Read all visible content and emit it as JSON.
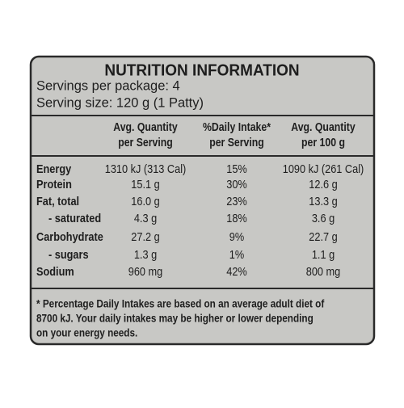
{
  "header": {
    "title": "NUTRITION INFORMATION",
    "servings_per_package": "Servings per package: 4",
    "serving_size": "Serving size: 120 g (1 Patty)"
  },
  "table": {
    "columns": [
      [
        "Avg. Quantity",
        "per Serving"
      ],
      [
        "%Daily Intake*",
        "per Serving"
      ],
      [
        "Avg. Quantity",
        "per 100 g"
      ]
    ],
    "rows": [
      [
        "Energy",
        "1310 kJ (313 Cal)",
        "15%",
        "1090 kJ (261 Cal)"
      ],
      [
        "Protein",
        "15.1 g",
        "30%",
        "12.6 g"
      ],
      [
        "Fat, total",
        "16.0 g",
        "23%",
        "13.3 g"
      ],
      [
        "- saturated",
        "4.3 g",
        "18%",
        "3.6 g"
      ],
      [
        "Carbohydrate",
        "27.2 g",
        "9%",
        "22.7 g"
      ],
      [
        "- sugars",
        "1.3 g",
        "1%",
        "1.1 g"
      ],
      [
        "Sodium",
        "960 mg",
        "42%",
        "800 mg"
      ]
    ]
  },
  "footnote": [
    "* Percentage Daily Intakes are based on an average adult diet of",
    "8700 kJ. Your daily intakes may be higher or lower depending",
    "on your energy needs."
  ]
}
